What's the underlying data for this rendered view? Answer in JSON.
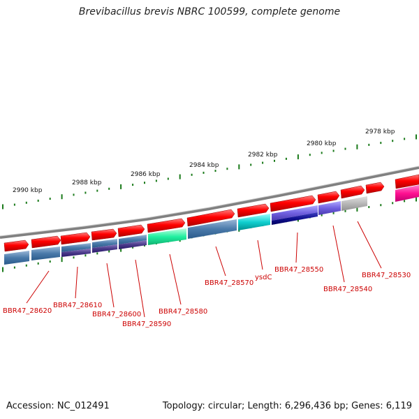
{
  "title": "Brevibacillus brevis NBRC 100599, complete genome",
  "footer": {
    "accession": "Accession: NC_012491",
    "summary": "Topology: circular; Length: 6,296,436 bp; Genes: 6,119"
  },
  "ticks": [
    "2990 kbp",
    "2988 kbp",
    "2986 kbp",
    "2984 kbp",
    "2982 kbp",
    "2980 kbp",
    "2978 kbp"
  ],
  "colors": {
    "backbone": "#808080",
    "forward_gene": "#ff0000",
    "tick": "#1a7a1a",
    "label": "#cc0000",
    "leader": "#cc0000"
  },
  "genes": [
    {
      "name": "BBR47_28620"
    },
    {
      "name": "BBR47_28610"
    },
    {
      "name": "BBR47_28600"
    },
    {
      "name": "BBR47_28590"
    },
    {
      "name": "BBR47_28580"
    },
    {
      "name": "BBR47_28570"
    },
    {
      "name": "ysdC"
    },
    {
      "name": "BBR47_28550"
    },
    {
      "name": "BBR47_28540"
    },
    {
      "name": "BBR47_28530"
    }
  ]
}
